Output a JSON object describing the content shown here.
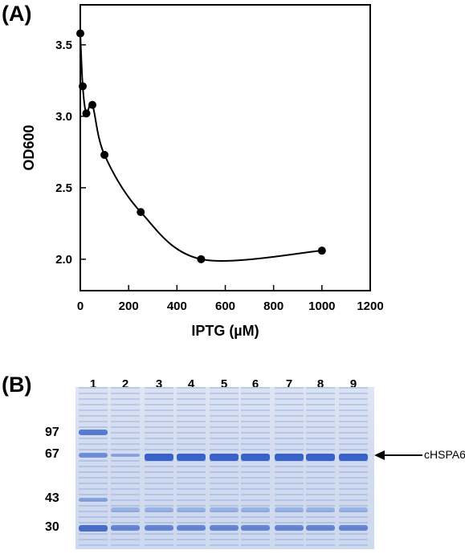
{
  "panel_a_label": "(A)",
  "panel_b_label": "(B)",
  "chart_data": {
    "type": "line",
    "xlabel": "IPTG (µM)",
    "ylabel": "OD600",
    "xlim": [
      0,
      1200
    ],
    "ylim": [
      1.78,
      3.78
    ],
    "xticks": [
      "0",
      "200",
      "400",
      "600",
      "800",
      "1000",
      "1200"
    ],
    "yticks": [
      "2.0",
      "2.5",
      "3.0",
      "3.5"
    ],
    "series": [
      {
        "x": [
          0,
          10,
          25,
          50,
          100,
          250,
          500,
          1000
        ],
        "y": [
          3.58,
          3.21,
          3.02,
          3.08,
          2.73,
          2.33,
          2.0,
          2.06
        ]
      }
    ],
    "grid": false,
    "marker": "circle",
    "line_style": "smooth",
    "color": "#000000"
  },
  "gel": {
    "lane_labels": [
      "1",
      "2",
      "3",
      "4",
      "5",
      "6",
      "7",
      "8",
      "9"
    ],
    "marker_weights": [
      "97",
      "67",
      "43",
      "30"
    ],
    "target_label": "cHSPA6"
  }
}
